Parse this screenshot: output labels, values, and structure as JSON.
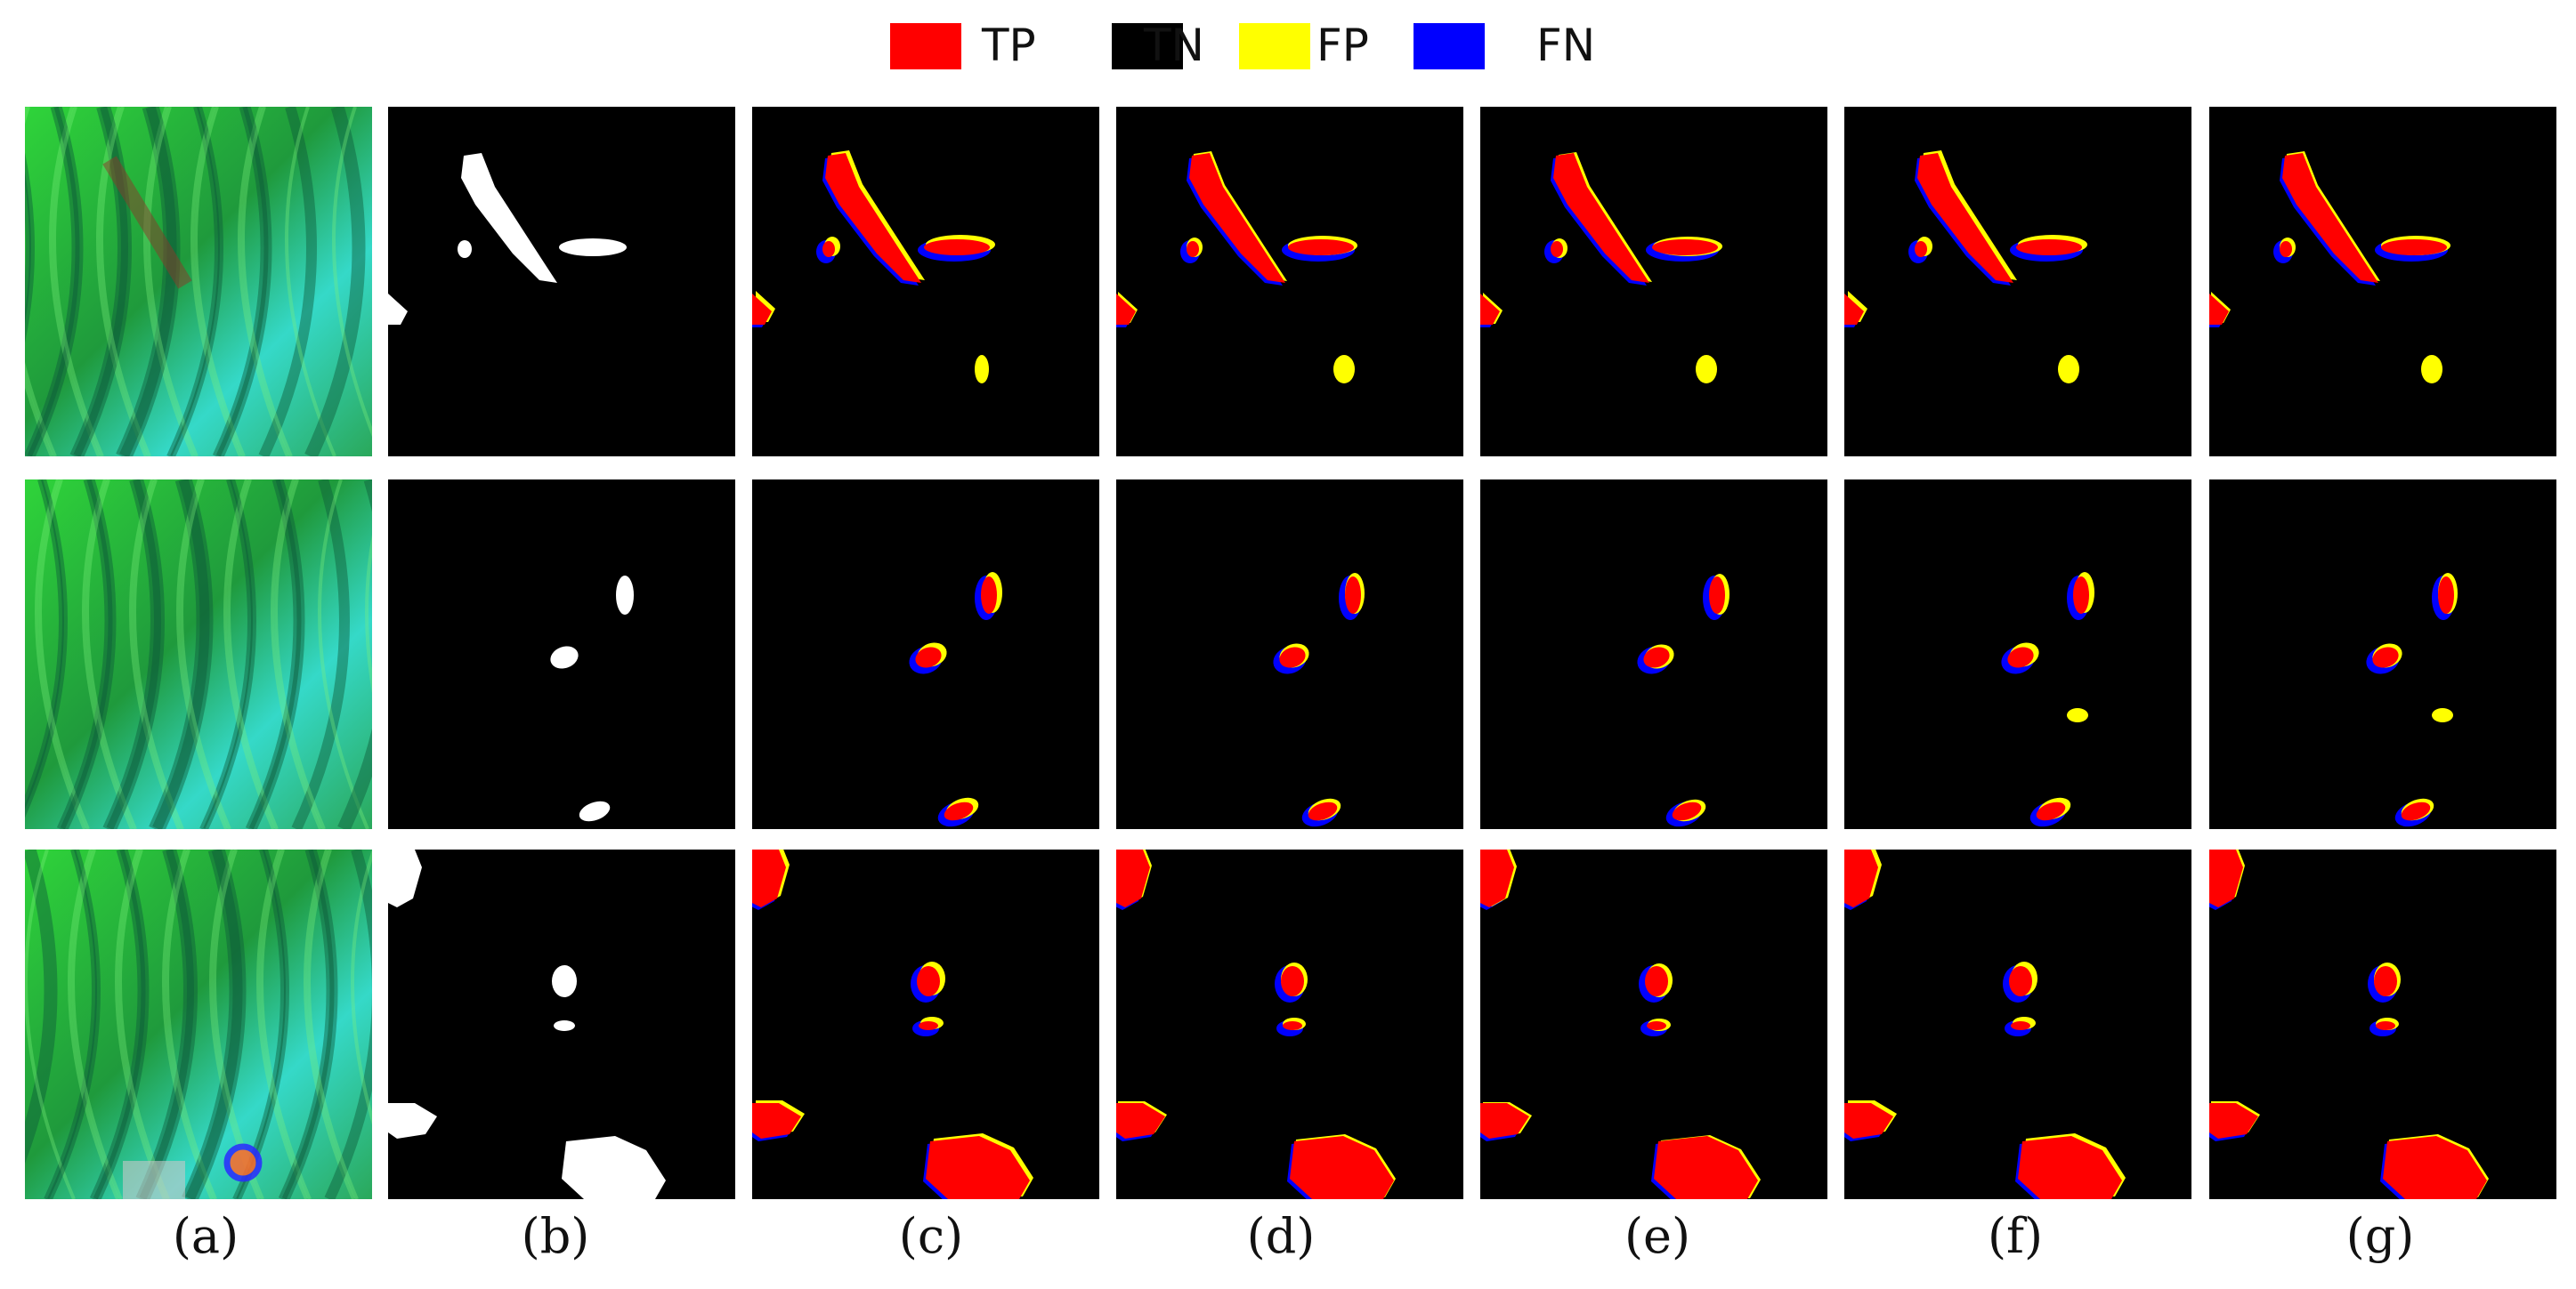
{
  "legend": [
    {
      "label": "TP",
      "color": "#ff0000"
    },
    {
      "label": "TN",
      "color": "#000000"
    },
    {
      "label": "FP",
      "color": "#ffff00"
    },
    {
      "label": "FN",
      "color": "#0000ff"
    }
  ],
  "captions": [
    "(a)",
    "(b)",
    "(c)",
    "(d)",
    "(e)",
    "(f)",
    "(g)"
  ],
  "colors": {
    "tp": "#ff0000",
    "fp": "#ffff00",
    "fn": "#0000ff",
    "mask": "#ffffff",
    "background": "#000000",
    "terrain_green": "#2fd43a",
    "terrain_cyan": "#35d9c8"
  }
}
